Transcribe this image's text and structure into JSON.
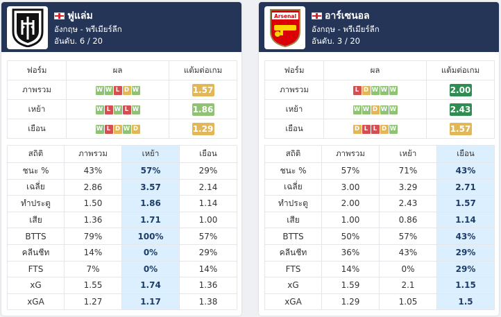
{
  "colors": {
    "header_bg": "#243558",
    "win": "#8fc275",
    "draw": "#e1b75a",
    "loss": "#d44f52",
    "pts_gold": "#e1b75a",
    "pts_green": "#8fc275",
    "pts_darkgreen": "#2f8d52",
    "highlight": "#dcefff"
  },
  "form_headers": [
    "ฟอร์ม",
    "ผล",
    "แต้มต่อเกม"
  ],
  "stats_headers": [
    "สถิติ",
    "ภาพรวม",
    "เหย้า",
    "เยือน"
  ],
  "teams": [
    {
      "name": "ฟูแล่ม",
      "league": "อังกฤษ - พรีเมียร์ลีก",
      "rank": "อันดับ. 6 / 20",
      "logo": "fulham-crest-icon",
      "highlight_col": 2,
      "form": [
        {
          "label": "ภาพรวม",
          "results": [
            "W",
            "W",
            "L",
            "D",
            "W"
          ],
          "pts": "1.57",
          "pts_color": "#e1b75a"
        },
        {
          "label": "เหย้า",
          "results": [
            "W",
            "L",
            "W",
            "L",
            "W"
          ],
          "pts": "1.86",
          "pts_color": "#8fc275"
        },
        {
          "label": "เยือน",
          "results": [
            "W",
            "L",
            "D",
            "W",
            "D"
          ],
          "pts": "1.29",
          "pts_color": "#e1b75a"
        }
      ],
      "stats": [
        [
          "ชนะ %",
          "43%",
          "57%",
          "29%"
        ],
        [
          "เฉลี่ย",
          "2.86",
          "3.57",
          "2.14"
        ],
        [
          "ทำประตู",
          "1.50",
          "1.86",
          "1.14"
        ],
        [
          "เสีย",
          "1.36",
          "1.71",
          "1.00"
        ],
        [
          "BTTS",
          "79%",
          "100%",
          "57%"
        ],
        [
          "คลีนชีท",
          "14%",
          "0%",
          "29%"
        ],
        [
          "FTS",
          "7%",
          "0%",
          "14%"
        ],
        [
          "xG",
          "1.55",
          "1.74",
          "1.36"
        ],
        [
          "xGA",
          "1.27",
          "1.17",
          "1.38"
        ]
      ]
    },
    {
      "name": "อาร์เซนอล",
      "league": "อังกฤษ - พรีเมียร์ลีก",
      "rank": "อันดับ. 3 / 20",
      "logo": "arsenal-crest-icon",
      "logo_text": "Arsenal",
      "highlight_col": 3,
      "form": [
        {
          "label": "ภาพรวม",
          "results": [
            "L",
            "D",
            "W",
            "W",
            "W"
          ],
          "pts": "2.00",
          "pts_color": "#2f8d52"
        },
        {
          "label": "เหย้า",
          "results": [
            "W",
            "W",
            "D",
            "W",
            "W"
          ],
          "pts": "2.43",
          "pts_color": "#2f8d52"
        },
        {
          "label": "เยือน",
          "results": [
            "D",
            "L",
            "L",
            "D",
            "W"
          ],
          "pts": "1.57",
          "pts_color": "#e1b75a"
        }
      ],
      "stats": [
        [
          "ชนะ %",
          "57%",
          "71%",
          "43%"
        ],
        [
          "เฉลี่ย",
          "3.00",
          "3.29",
          "2.71"
        ],
        [
          "ทำประตู",
          "2.00",
          "2.43",
          "1.57"
        ],
        [
          "เสีย",
          "1.00",
          "0.86",
          "1.14"
        ],
        [
          "BTTS",
          "50%",
          "57%",
          "43%"
        ],
        [
          "คลีนชีท",
          "36%",
          "43%",
          "29%"
        ],
        [
          "FTS",
          "14%",
          "0%",
          "29%"
        ],
        [
          "xG",
          "1.59",
          "2.1",
          "1.15"
        ],
        [
          "xGA",
          "1.29",
          "1.05",
          "1.5"
        ]
      ]
    }
  ]
}
